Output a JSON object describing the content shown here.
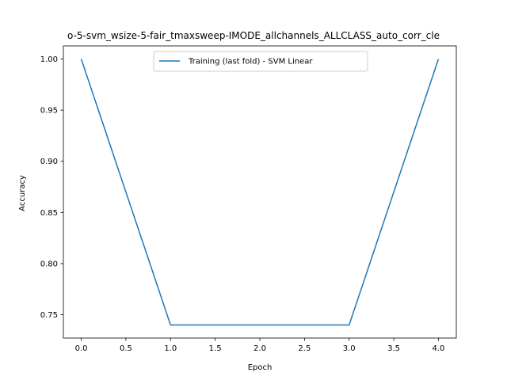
{
  "chart_data": {
    "type": "line",
    "title": "o-5-svm_wsize-5-fair_tmaxsweep-IMODE_allchannels_ALLCLASS_auto_corr_cle",
    "xlabel": "Epoch",
    "ylabel": "Accuracy",
    "xlim": [
      -0.2,
      4.2
    ],
    "ylim": [
      0.7272,
      1.0128
    ],
    "x_ticks": [
      "0.0",
      "0.5",
      "1.0",
      "1.5",
      "2.0",
      "2.5",
      "3.0",
      "3.5",
      "4.0"
    ],
    "y_ticks": [
      "0.75",
      "0.80",
      "0.85",
      "0.90",
      "0.95",
      "1.00"
    ],
    "grid": false,
    "legend_position": "upper center",
    "series": [
      {
        "name": "Training (last fold) - SVM Linear",
        "color": "#1f77b4",
        "x": [
          0,
          1,
          2,
          3,
          4
        ],
        "y": [
          1.0,
          0.74,
          0.74,
          0.74,
          1.0
        ]
      }
    ]
  }
}
